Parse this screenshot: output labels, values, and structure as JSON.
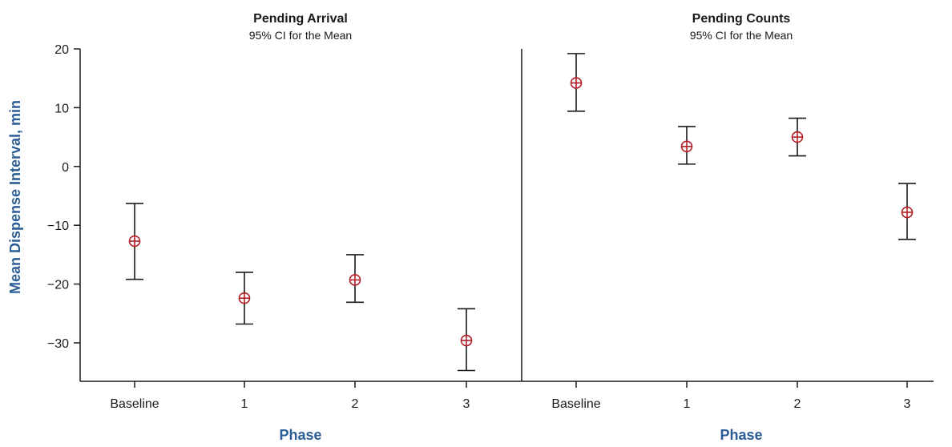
{
  "chart_data": {
    "type": "scatter",
    "ylabel": "Mean Dispense Interval, min",
    "ylim": [
      -37,
      20
    ],
    "yticks": [
      20,
      10,
      0,
      -10,
      -20,
      -30
    ],
    "ytick_labels": [
      "20",
      "10",
      "0",
      "−10",
      "−20",
      "−30"
    ],
    "colors": {
      "marker": "#b21e28",
      "axis_label": "#2a5d96",
      "lines": "#1a1a1a"
    },
    "panels": [
      {
        "title": "Pending Arrival",
        "subtitle": "95% CI for the Mean",
        "xlabel": "Phase",
        "categories": [
          "Baseline",
          "1",
          "2",
          "3"
        ],
        "mean": [
          -12.7,
          -22.4,
          -19.3,
          -29.6
        ],
        "ci_lower": [
          -19.2,
          -26.8,
          -23.1,
          -34.7
        ],
        "ci_upper": [
          -6.3,
          -18.0,
          -15.0,
          -24.2
        ]
      },
      {
        "title": "Pending Counts",
        "subtitle": "95% CI for the Mean",
        "xlabel": "Phase",
        "categories": [
          "Baseline",
          "1",
          "2",
          "3"
        ],
        "mean": [
          14.2,
          3.4,
          5.0,
          -7.8
        ],
        "ci_lower": [
          9.4,
          0.4,
          1.8,
          -12.4
        ],
        "ci_upper": [
          19.2,
          6.8,
          8.2,
          -2.9
        ]
      }
    ]
  }
}
